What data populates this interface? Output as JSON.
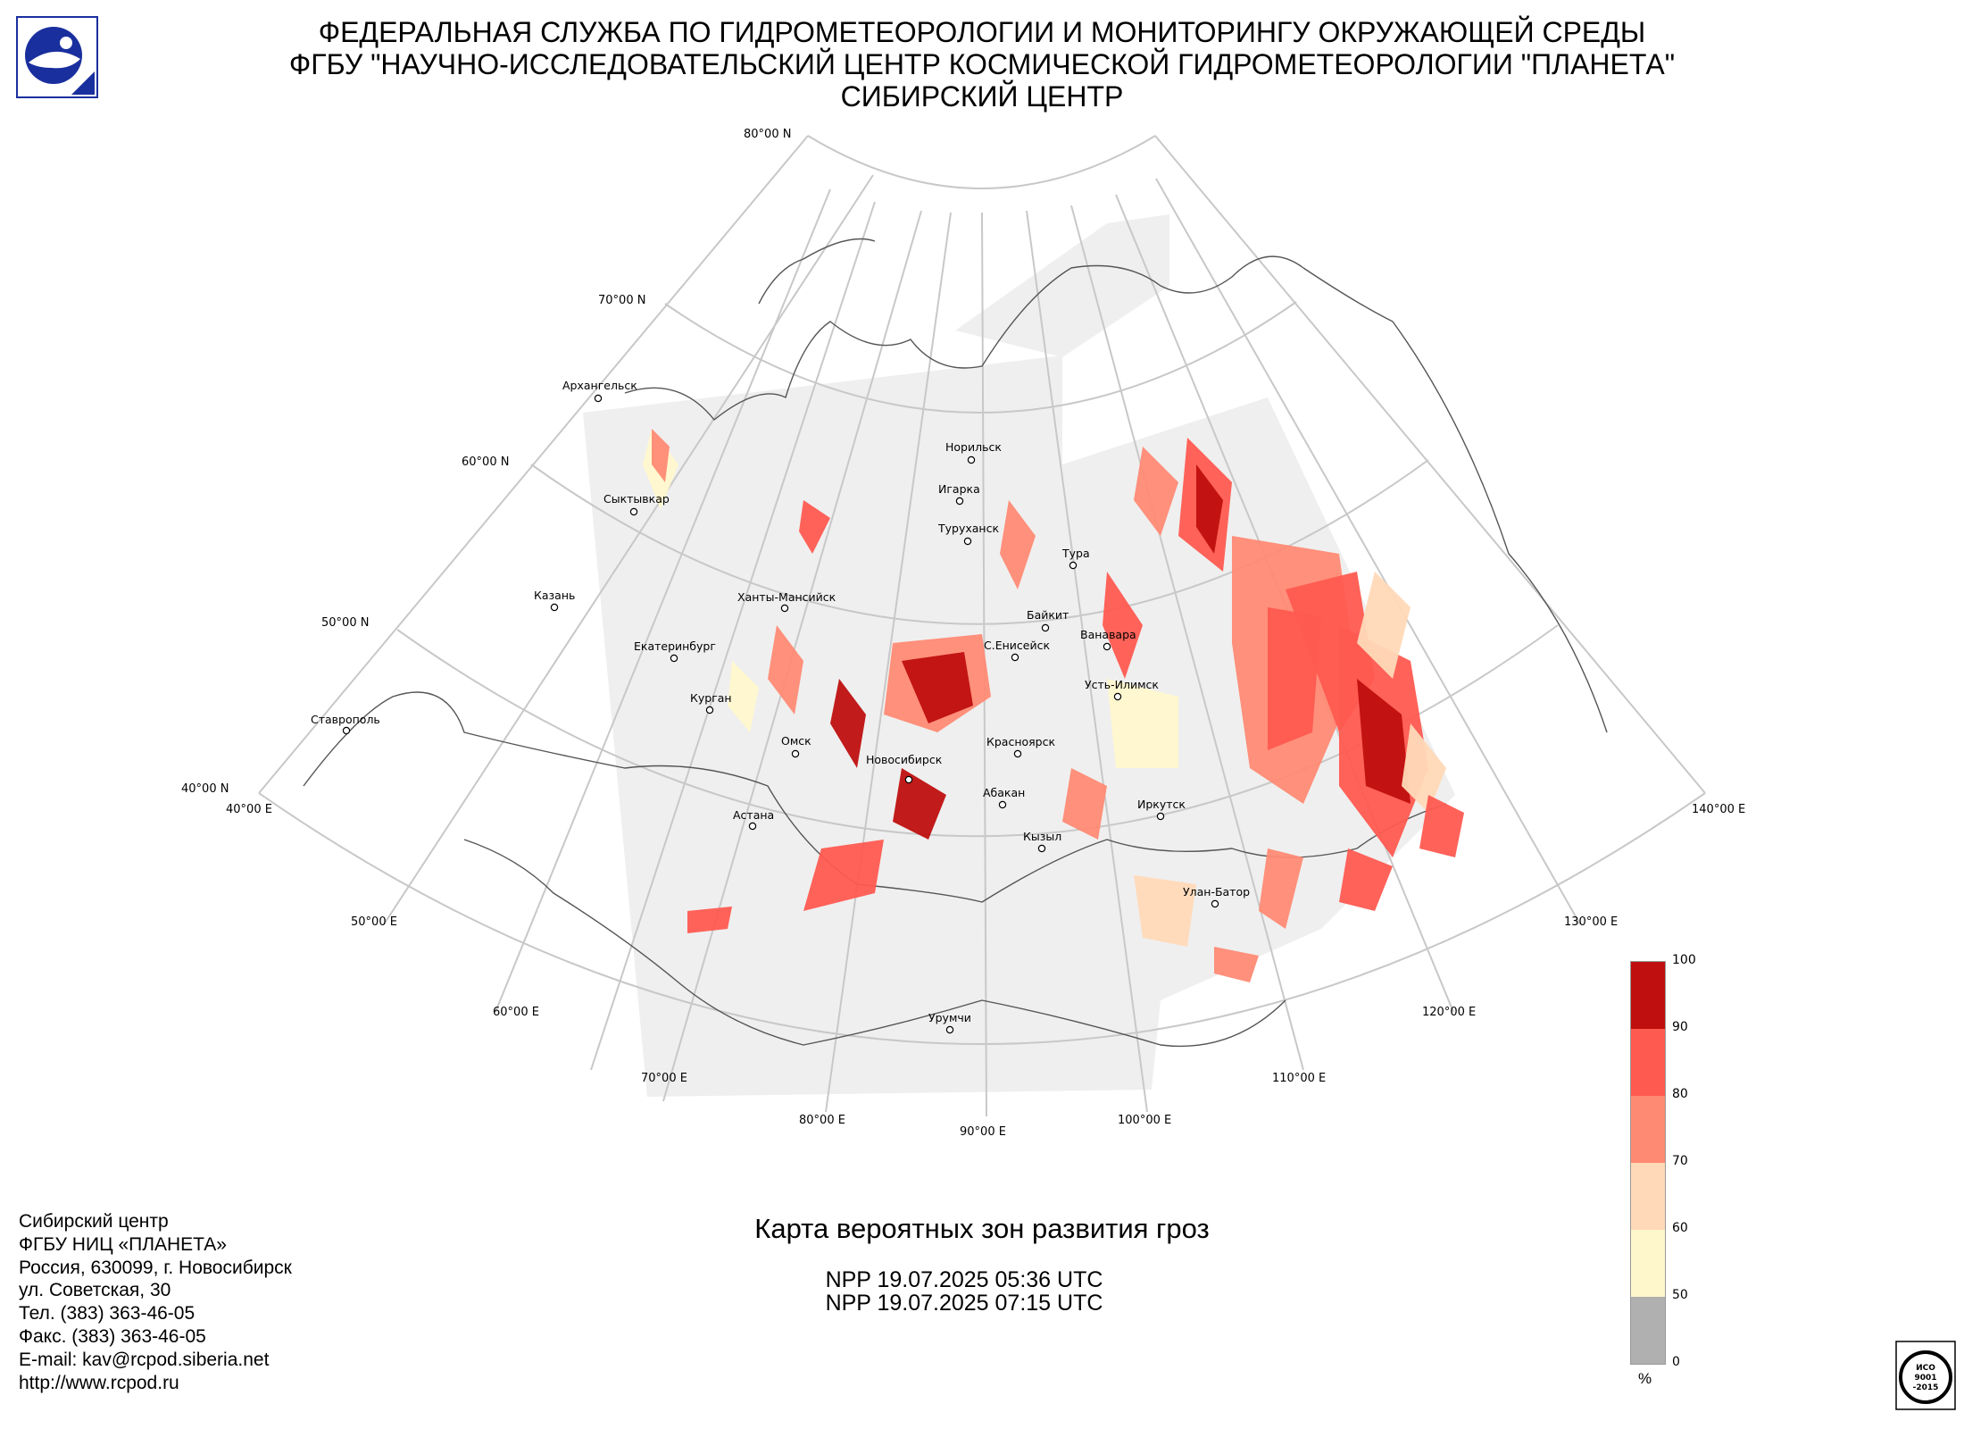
{
  "header": {
    "line1": "ФЕДЕРАЛЬНАЯ СЛУЖБА ПО ГИДРОМЕТЕОРОЛОГИИ И МОНИТОРИНГУ ОКРУЖАЮЩЕЙ СРЕДЫ",
    "line2": "ФГБУ \"НАУЧНО-ИССЛЕДОВАТЕЛЬСКИЙ ЦЕНТР КОСМИЧЕСКОЙ ГИДРОМЕТЕОРОЛОГИИ \"ПЛАНЕТА\"",
    "line3": "СИБИРСКИЙ ЦЕНТР"
  },
  "map": {
    "lat_labels": [
      "80°00 N",
      "70°00 N",
      "60°00 N",
      "50°00 N",
      "40°00 N"
    ],
    "lon_labels": [
      "40°00 E",
      "50°00 E",
      "60°00 E",
      "70°00 E",
      "80°00 E",
      "90°00 E",
      "100°00 E",
      "110°00 E",
      "120°00 E",
      "130°00 E",
      "140°00 E"
    ],
    "cities": [
      "Архангельск",
      "Сыктывкар",
      "Казань",
      "Ставрополь",
      "Екатеринбург",
      "Ханты-Мансийск",
      "Курган",
      "Омск",
      "Астана",
      "Новосибирск",
      "Норильск",
      "Игарка",
      "Туруханск",
      "Тура",
      "Байкит",
      "С.Енисейск",
      "Ванавара",
      "Усть-Илимск",
      "Красноярск",
      "Абакан",
      "Кызыл",
      "Иркутск",
      "Улан-Батор",
      "Урумчи"
    ]
  },
  "legend": {
    "ticks": [
      "100",
      "90",
      "80",
      "70",
      "60",
      "50",
      "0"
    ],
    "unit": "%",
    "colors": [
      "#bf0f0f",
      "#ff5a50",
      "#ff8a74",
      "#ffd9b8",
      "#fff7cc",
      "#b0b0b0"
    ]
  },
  "contact": {
    "lines": [
      "Сибирский центр",
      "ФГБУ НИЦ «ПЛАНЕТА»",
      "Россия, 630099, г. Новосибирск",
      "ул. Советская, 30",
      "Тел. (383) 363-46-05",
      "Факс. (383) 363-46-05",
      "E-mail: kav@rcpod.siberia.net",
      "http://www.rcpod.ru"
    ]
  },
  "title": "Карта вероятных зон развития гроз",
  "passes": [
    "NPP 19.07.2025  05:36 UTC",
    "NPP 19.07.2025  07:15 UTC"
  ],
  "iso_badge": {
    "line1": "ИСО",
    "line2": "9001",
    "line3": "-2015"
  }
}
